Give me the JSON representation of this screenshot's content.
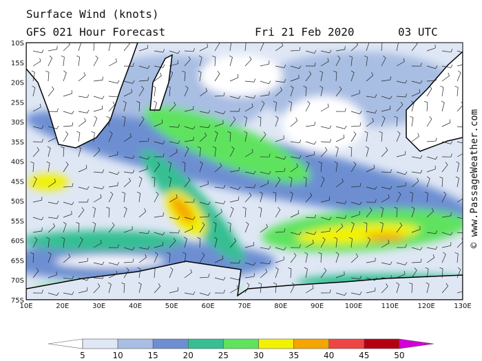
{
  "header": {
    "title": "Surface Wind (knots)",
    "subtitle": "GFS 021 Hour Forecast",
    "date": "Fri 21 Feb 2020",
    "time": "03 UTC"
  },
  "map": {
    "lat_labels": [
      "10S",
      "15S",
      "20S",
      "25S",
      "30S",
      "35S",
      "40S",
      "45S",
      "50S",
      "55S",
      "60S",
      "65S",
      "70S",
      "75S"
    ],
    "lon_labels": [
      "10E",
      "20E",
      "30E",
      "40E",
      "50E",
      "60E",
      "70E",
      "80E",
      "90E",
      "100E",
      "110E",
      "120E",
      "130E"
    ]
  },
  "legend": {
    "labels": [
      "5",
      "10",
      "15",
      "20",
      "25",
      "30",
      "35",
      "40",
      "45",
      "50"
    ],
    "colors": [
      "#ffffff",
      "#dfe7f5",
      "#a9bee3",
      "#6d8fd2",
      "#35bf93",
      "#5fe35f",
      "#f2f200",
      "#f5a400",
      "#ee4444",
      "#b40012",
      "#d400d4"
    ]
  },
  "credit": "© www.PassageWeather.com"
}
